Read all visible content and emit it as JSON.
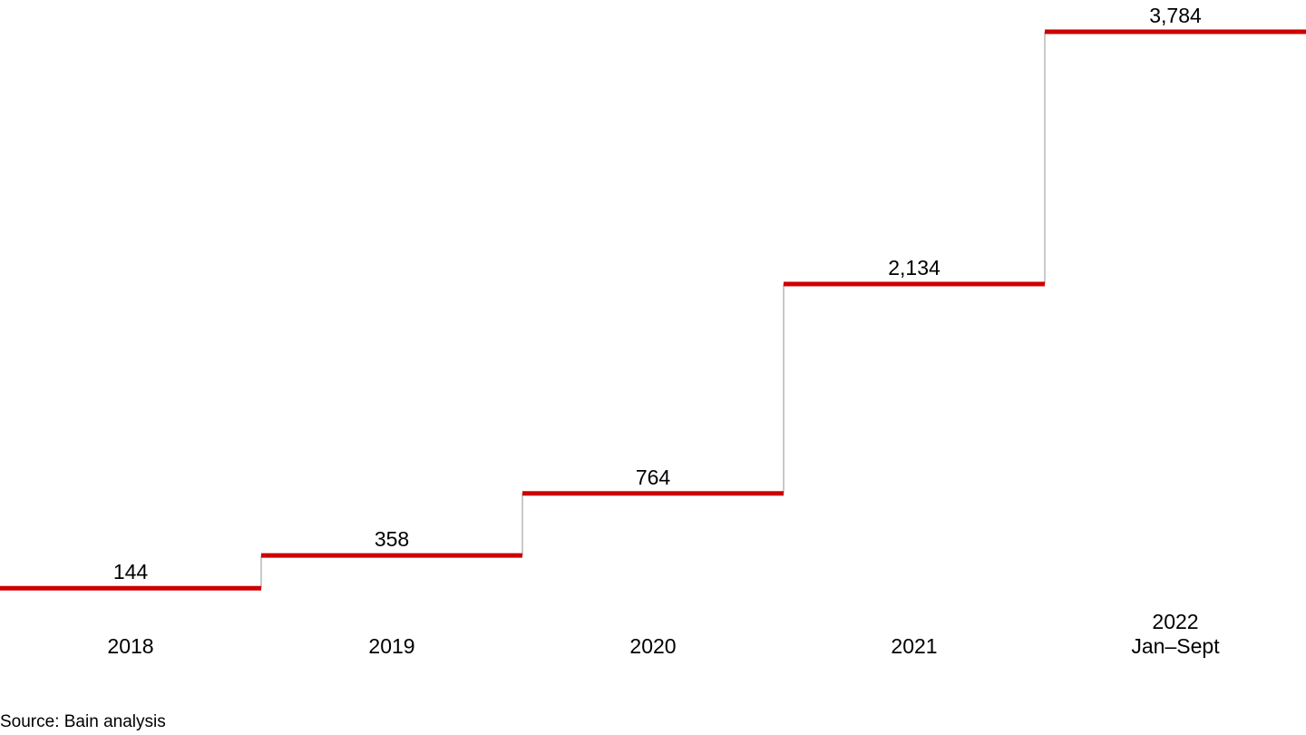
{
  "chart_data": {
    "type": "line",
    "subtype": "step",
    "categories": [
      [
        "2018"
      ],
      [
        "2019"
      ],
      [
        "2020"
      ],
      [
        "2021"
      ],
      [
        "2022",
        "Jan–Sept"
      ]
    ],
    "values": [
      144,
      358,
      764,
      2134,
      3784
    ],
    "value_labels": [
      "144",
      "358",
      "764",
      "2,134",
      "3,784"
    ],
    "ylim": [
      0,
      3784
    ],
    "grid": false,
    "legend": "none",
    "colors": {
      "step": "#cc0000",
      "riser": "#a6a6a6",
      "text": "#000000"
    }
  },
  "source": "Source: Bain analysis"
}
